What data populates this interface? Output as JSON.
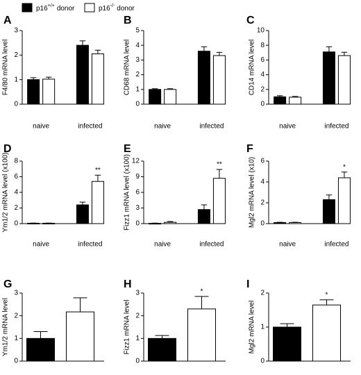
{
  "legend": [
    {
      "name": "p16",
      "superscript": "+/+",
      "suffix": "donor",
      "color": "#000000"
    },
    {
      "name": "p16",
      "superscript": "-/-",
      "suffix": "donor",
      "color": "#ffffff"
    }
  ],
  "chart_data": [
    {
      "type": "bar",
      "letter": "A",
      "ylabel": "F4/80 mRNA level",
      "categories": [
        "naive",
        "infected"
      ],
      "ylim": [
        0,
        3
      ],
      "yticks": [
        0,
        1,
        2,
        3
      ],
      "series": [
        {
          "color": "#000000",
          "values": [
            1.0,
            2.4
          ],
          "errors": [
            0.08,
            0.18
          ]
        },
        {
          "color": "#ffffff",
          "values": [
            1.02,
            2.05
          ],
          "errors": [
            0.08,
            0.15
          ]
        }
      ]
    },
    {
      "type": "bar",
      "letter": "B",
      "ylabel": "CD68 mRNA level",
      "categories": [
        "naive",
        "infected"
      ],
      "ylim": [
        0,
        5
      ],
      "yticks": [
        0,
        1,
        2,
        3,
        4,
        5
      ],
      "series": [
        {
          "color": "#000000",
          "values": [
            1.0,
            3.6
          ],
          "errors": [
            0.05,
            0.3
          ]
        },
        {
          "color": "#ffffff",
          "values": [
            1.0,
            3.3
          ],
          "errors": [
            0.05,
            0.22
          ]
        }
      ]
    },
    {
      "type": "bar",
      "letter": "C",
      "ylabel": "CD14 mRNA level",
      "categories": [
        "naive",
        "infected"
      ],
      "ylim": [
        0,
        10
      ],
      "yticks": [
        0,
        2,
        4,
        6,
        8,
        10
      ],
      "series": [
        {
          "color": "#000000",
          "values": [
            1.0,
            7.1
          ],
          "errors": [
            0.15,
            0.7
          ]
        },
        {
          "color": "#ffffff",
          "values": [
            0.95,
            6.6
          ],
          "errors": [
            0.1,
            0.45
          ]
        }
      ]
    },
    {
      "type": "bar",
      "letter": "D",
      "ylabel": "Ym1/2 mRNA level (x100)",
      "categories": [
        "naive",
        "infected"
      ],
      "ylim": [
        0,
        8
      ],
      "yticks": [
        0,
        2,
        4,
        6,
        8
      ],
      "series": [
        {
          "color": "#000000",
          "values": [
            0.05,
            2.4
          ],
          "errors": [
            0.02,
            0.35
          ]
        },
        {
          "color": "#ffffff",
          "values": [
            0.05,
            5.4
          ],
          "errors": [
            0.02,
            0.8
          ],
          "annotations": [
            null,
            "**"
          ]
        }
      ]
    },
    {
      "type": "bar",
      "letter": "E",
      "ylabel": "Fizz1 mRNA level (x100)",
      "categories": [
        "naive",
        "infected"
      ],
      "ylim": [
        0,
        12
      ],
      "yticks": [
        0,
        3,
        6,
        9,
        12
      ],
      "series": [
        {
          "color": "#000000",
          "values": [
            0.05,
            2.7
          ],
          "errors": [
            0.05,
            0.9
          ]
        },
        {
          "color": "#ffffff",
          "values": [
            0.25,
            8.7
          ],
          "errors": [
            0.15,
            1.7
          ],
          "annotations": [
            null,
            "**"
          ]
        }
      ]
    },
    {
      "type": "bar",
      "letter": "F",
      "ylabel": "Mgl2 mRNA level (x10)",
      "categories": [
        "naive",
        "infected"
      ],
      "ylim": [
        0,
        6
      ],
      "yticks": [
        0,
        2,
        4,
        6
      ],
      "series": [
        {
          "color": "#000000",
          "values": [
            0.1,
            2.3
          ],
          "errors": [
            0.03,
            0.45
          ]
        },
        {
          "color": "#ffffff",
          "values": [
            0.1,
            4.4
          ],
          "errors": [
            0.03,
            0.55
          ],
          "annotations": [
            null,
            "*"
          ]
        }
      ]
    },
    {
      "type": "bar",
      "letter": "G",
      "ylabel": "Ym1/2 mRNA level",
      "categories": [
        null
      ],
      "ylim": [
        0,
        3
      ],
      "yticks": [
        0,
        1,
        2,
        3
      ],
      "series": [
        {
          "color": "#000000",
          "values": [
            1.0
          ],
          "errors": [
            0.3
          ]
        },
        {
          "color": "#ffffff",
          "values": [
            2.17
          ],
          "errors": [
            0.62
          ]
        }
      ]
    },
    {
      "type": "bar",
      "letter": "H",
      "ylabel": "Fizz1 mRNA level",
      "categories": [
        null
      ],
      "ylim": [
        0,
        3
      ],
      "yticks": [
        0,
        1,
        2,
        3
      ],
      "series": [
        {
          "color": "#000000",
          "values": [
            1.0
          ],
          "errors": [
            0.13
          ]
        },
        {
          "color": "#ffffff",
          "values": [
            2.3
          ],
          "errors": [
            0.55
          ],
          "annotations": [
            "*"
          ]
        }
      ]
    },
    {
      "type": "bar",
      "letter": "I",
      "ylabel": "Mgl2 mRNA level",
      "categories": [
        null
      ],
      "ylim": [
        0,
        2
      ],
      "yticks": [
        0,
        1,
        2
      ],
      "series": [
        {
          "color": "#000000",
          "values": [
            1.0
          ],
          "errors": [
            0.1
          ]
        },
        {
          "color": "#ffffff",
          "values": [
            1.65
          ],
          "errors": [
            0.15
          ],
          "annotations": [
            "*"
          ]
        }
      ]
    }
  ]
}
